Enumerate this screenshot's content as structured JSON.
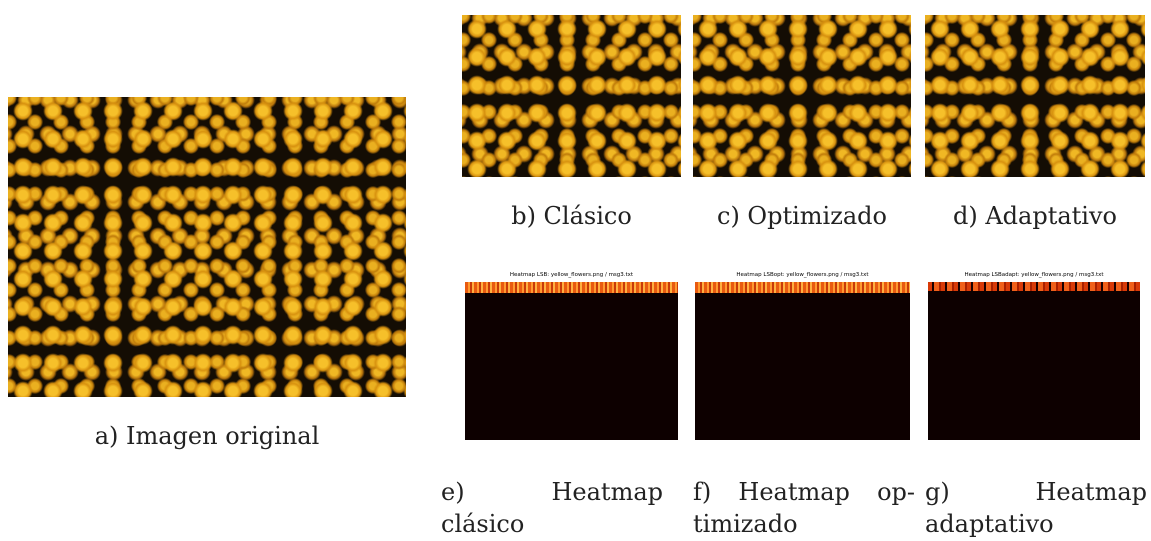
{
  "figure": {
    "original": {
      "caption": "a) Imagen original"
    },
    "stego": [
      {
        "caption": "b) Clásico"
      },
      {
        "caption": "c) Optimizado"
      },
      {
        "caption": "d) Adaptativo"
      }
    ],
    "heatmaps": [
      {
        "title": "Heatmap LSB: yellow_flowers.png / msg3.txt",
        "caption": [
          "e) Heatmap",
          "clásico"
        ]
      },
      {
        "title": "Heatmap LSBopt: yellow_flowers.png / msg3.txt",
        "caption": [
          "f) Heatmap op-",
          "timizado"
        ]
      },
      {
        "title": "Heatmap LSBadapt: yellow_flowers.png / msg3.txt",
        "caption": [
          "g) Heatmap",
          "adaptativo"
        ]
      }
    ]
  }
}
